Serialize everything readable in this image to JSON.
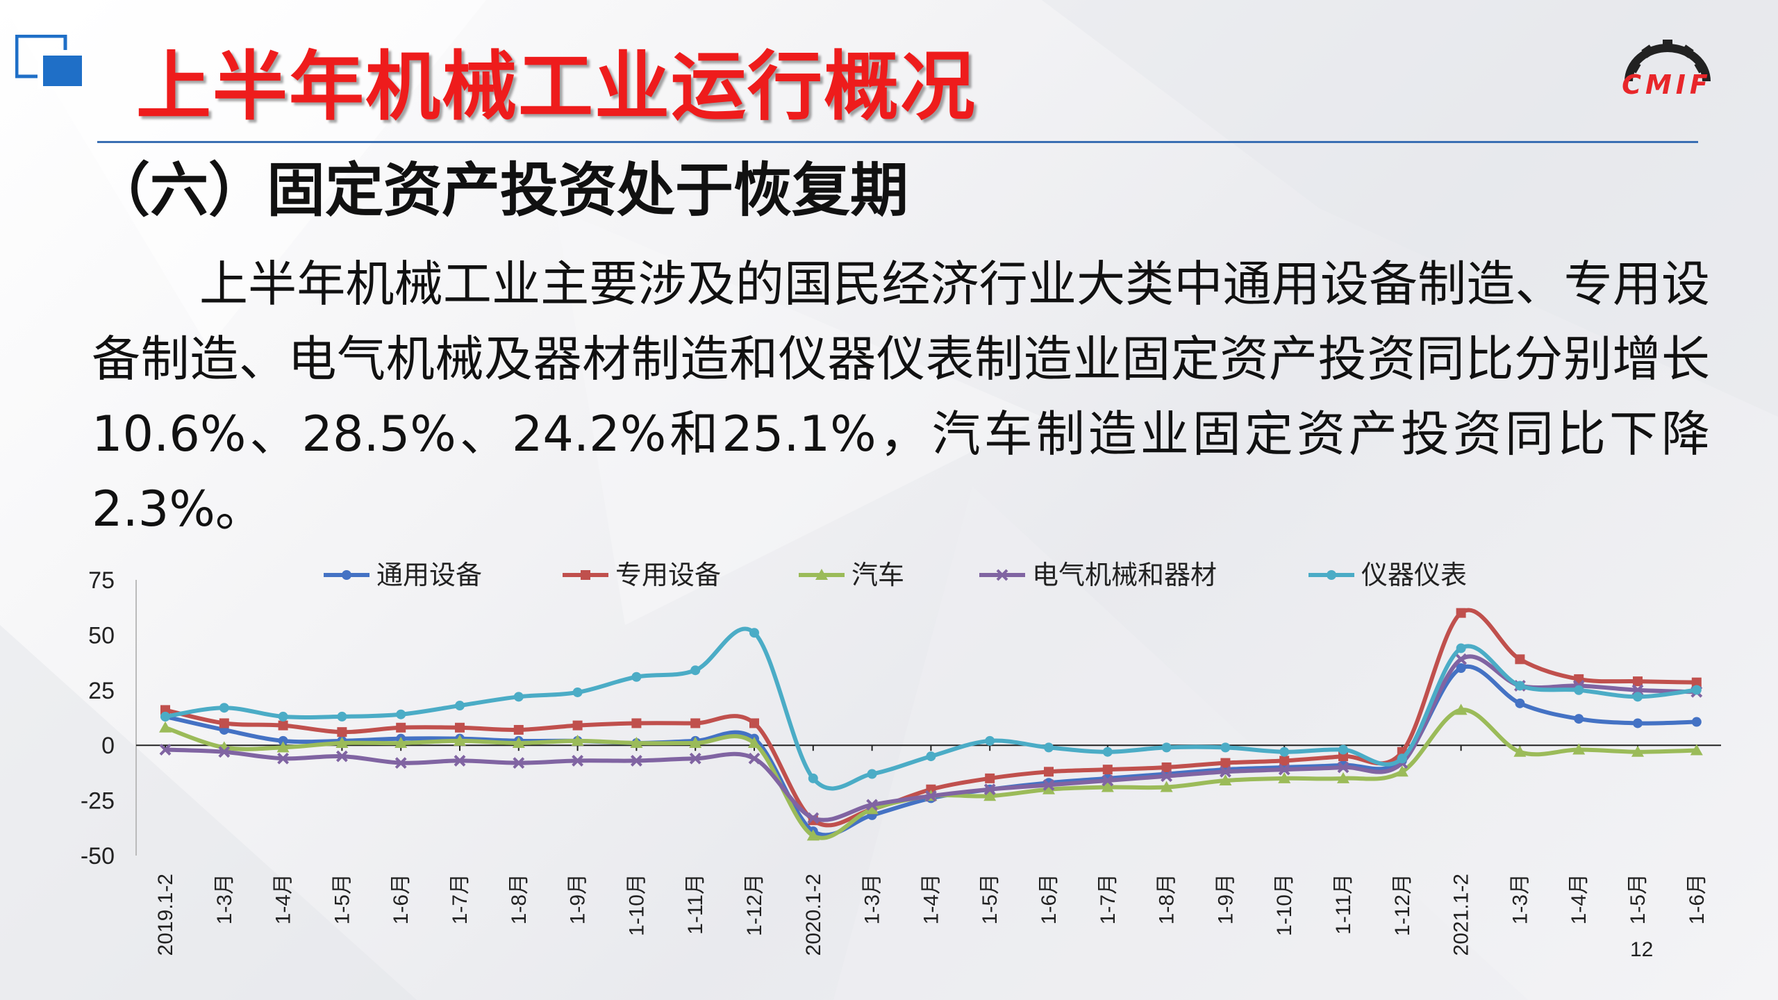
{
  "slide": {
    "title": "上半年机械工业运行概况",
    "subtitle": "（六）固定资产投资处于恢复期",
    "paragraph": "上半年机械工业主要涉及的国民经济行业大类中通用设备制造、专用设备制造、电气机械及器材制造和仪器仪表制造业固定资产投资同比分别增长10.6%、28.5%、24.2%和25.1%，汽车制造业固定资产投资同比下降2.3%。",
    "logo_text": "CMIF",
    "page_number": "12"
  },
  "colors": {
    "title": "#ee1c1c",
    "rule": "#3a6fb3",
    "logo_blue": "#1f6fc7"
  },
  "chart_data": {
    "type": "line",
    "categories": [
      "2019.1-2",
      "1-3月",
      "1-4月",
      "1-5月",
      "1-6月",
      "1-7月",
      "1-8月",
      "1-9月",
      "1-10月",
      "1-11月",
      "1-12月",
      "2020.1-2",
      "1-3月",
      "1-4月",
      "1-5月",
      "1-6月",
      "1-7月",
      "1-8月",
      "1-9月",
      "1-10月",
      "1-11月",
      "1-12月",
      "2021.1-2",
      "1-3月",
      "1-4月",
      "1-5月",
      "1-6月"
    ],
    "ylim": [
      -50,
      75
    ],
    "yticks": [
      75,
      50,
      25,
      0,
      -25,
      -50
    ],
    "legend_position": "top",
    "series": [
      {
        "name": "通用设备",
        "color": "#4472c4",
        "marker": "circle",
        "values": [
          13,
          7,
          2,
          2,
          3,
          3,
          2,
          2,
          1,
          2,
          3,
          -39,
          -31.7,
          -24,
          -20,
          -17,
          -15,
          -13,
          -11,
          -10,
          -9,
          -7,
          35,
          19,
          12,
          10,
          10.6
        ]
      },
      {
        "name": "专用设备",
        "color": "#c0504d",
        "marker": "square",
        "values": [
          16,
          10,
          9,
          6,
          8,
          8,
          7,
          9,
          10,
          10,
          10,
          -34,
          -29,
          -20,
          -15,
          -12,
          -11,
          -10,
          -8,
          -7,
          -5,
          -3,
          60,
          39,
          30,
          29,
          28.5
        ]
      },
      {
        "name": "汽车",
        "color": "#9bbb59",
        "marker": "triangle",
        "values": [
          8,
          -1,
          -1,
          1,
          1,
          2,
          1,
          2,
          1,
          1,
          1,
          -41,
          -29,
          -23,
          -23,
          -20,
          -19,
          -19,
          -16,
          -15,
          -15,
          -12,
          16,
          -3,
          -2,
          -3,
          -2.3
        ]
      },
      {
        "name": "电气机械和器材",
        "color": "#8064a2",
        "marker": "x",
        "values": [
          -2,
          -3,
          -6,
          -5,
          -8,
          -7,
          -8,
          -7,
          -7,
          -6,
          -6,
          -33,
          -27,
          -23,
          -20,
          -18,
          -16,
          -14,
          -12,
          -11,
          -10,
          -8,
          39,
          27,
          27,
          25,
          24.2
        ]
      },
      {
        "name": "仪器仪表",
        "color": "#4bacc6",
        "marker": "circle",
        "values": [
          13,
          17,
          13,
          13,
          14,
          18,
          22,
          24,
          31,
          34,
          51,
          -15,
          -13,
          -5,
          2,
          -1,
          -3,
          -1,
          -1,
          -3,
          -2,
          -6,
          44,
          27,
          25,
          22,
          25.1
        ]
      }
    ]
  }
}
